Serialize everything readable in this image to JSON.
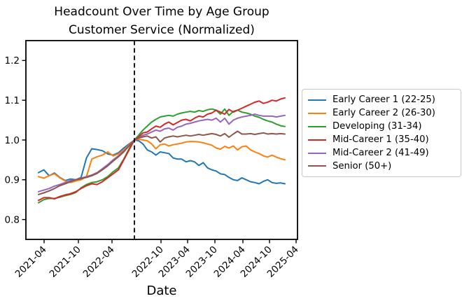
{
  "title": {
    "line1": "Headcount Over Time by Age Group",
    "line2": "Customer Service (Normalized)"
  },
  "chart_data": {
    "type": "line",
    "title": "Headcount Over Time by Age Group",
    "subtitle": "Customer Service (Normalized)",
    "xlabel": "Date",
    "ylabel": "",
    "grid": false,
    "legend_position": "right",
    "ylim": [
      0.75,
      1.25
    ],
    "y_ticks": [
      0.8,
      0.9,
      1.0,
      1.1,
      1.2
    ],
    "y_tick_labels": [
      "0.8",
      "0.9",
      "1.0",
      "1.1",
      "1.2"
    ],
    "x_tick_labels": [
      "2021-04",
      "2021-10",
      "2022-04",
      "2022-10",
      "2023-04",
      "2023-10",
      "2024-04",
      "2024-10",
      "2025-04"
    ],
    "x": [
      "2021-01",
      "2021-02",
      "2021-03",
      "2021-04",
      "2021-05",
      "2021-06",
      "2021-07",
      "2021-08",
      "2021-09",
      "2021-10",
      "2021-11",
      "2021-12",
      "2022-01",
      "2022-02",
      "2022-03",
      "2022-04",
      "2022-05",
      "2022-06",
      "2022-07",
      "2022-08",
      "2022-09",
      "2022-10",
      "2022-11",
      "2022-12",
      "2023-01",
      "2023-02",
      "2023-03",
      "2023-04",
      "2023-05",
      "2023-06",
      "2023-07",
      "2023-08",
      "2023-09",
      "2023-10",
      "2023-11",
      "2023-12",
      "2024-01",
      "2024-02",
      "2024-03",
      "2024-04",
      "2024-05",
      "2024-06",
      "2024-07",
      "2024-08",
      "2024-09",
      "2024-10",
      "2024-11",
      "2024-12",
      "2025-01",
      "2025-02",
      "2025-03",
      "2025-04",
      "2025-05",
      "2025-06"
    ],
    "cutoff_index": 18,
    "vline": {
      "style": "dashed",
      "color": "#000000",
      "x_estimate": "2022-07",
      "normalized_value_at_line": 1.0
    },
    "series": [
      {
        "name": "Early Career 1 (22-25)",
        "color": "#1f77b4",
        "values": [
          0.918,
          0.925,
          0.91,
          0.917,
          0.906,
          0.898,
          0.902,
          0.9,
          0.906,
          0.955,
          0.978,
          0.976,
          0.973,
          0.965,
          0.962,
          0.968,
          0.98,
          0.99,
          1.0,
          0.998,
          0.99,
          0.975,
          0.97,
          0.962,
          0.97,
          0.968,
          0.966,
          0.955,
          0.952,
          0.952,
          0.945,
          0.948,
          0.945,
          0.936,
          0.943,
          0.93,
          0.925,
          0.922,
          0.915,
          0.913,
          0.906,
          0.9,
          0.898,
          0.905,
          0.9,
          0.895,
          0.893,
          0.89,
          0.896,
          0.9,
          0.893,
          0.891,
          0.892,
          0.89
        ]
      },
      {
        "name": "Early Career 2 (26-30)",
        "color": "#ff7f0e",
        "values": [
          0.908,
          0.904,
          0.91,
          0.915,
          0.905,
          0.897,
          0.893,
          0.897,
          0.9,
          0.908,
          0.952,
          0.958,
          0.962,
          0.97,
          0.96,
          0.965,
          0.975,
          0.988,
          1.0,
          1.002,
          1.0,
          0.998,
          0.99,
          0.978,
          0.988,
          0.99,
          0.985,
          0.988,
          0.99,
          0.992,
          0.995,
          0.996,
          0.996,
          0.995,
          0.993,
          0.99,
          0.987,
          0.98,
          0.977,
          0.984,
          0.98,
          0.985,
          0.975,
          0.983,
          0.985,
          0.975,
          0.97,
          0.966,
          0.96,
          0.957,
          0.962,
          0.957,
          0.953,
          0.95
        ]
      },
      {
        "name": "Developing (31-34)",
        "color": "#2ca02c",
        "values": [
          0.842,
          0.85,
          0.853,
          0.853,
          0.856,
          0.86,
          0.863,
          0.868,
          0.88,
          0.888,
          0.893,
          0.895,
          0.9,
          0.908,
          0.92,
          0.93,
          0.952,
          0.978,
          1.0,
          1.012,
          1.025,
          1.035,
          1.045,
          1.052,
          1.058,
          1.06,
          1.062,
          1.06,
          1.065,
          1.068,
          1.07,
          1.072,
          1.07,
          1.074,
          1.072,
          1.076,
          1.078,
          1.075,
          1.065,
          1.078,
          1.062,
          1.072,
          1.075,
          1.07,
          1.068,
          1.065,
          1.06,
          1.057,
          1.052,
          1.048,
          1.045,
          1.04,
          1.036,
          1.034
        ]
      },
      {
        "name": "Mid-Career 1 (35-40)",
        "color": "#d62728",
        "values": [
          0.848,
          0.855,
          0.855,
          0.852,
          0.858,
          0.862,
          0.865,
          0.87,
          0.878,
          0.885,
          0.89,
          0.888,
          0.895,
          0.905,
          0.915,
          0.925,
          0.95,
          0.975,
          1.0,
          1.008,
          1.018,
          1.02,
          1.028,
          1.035,
          1.032,
          1.04,
          1.045,
          1.038,
          1.044,
          1.05,
          1.052,
          1.048,
          1.055,
          1.06,
          1.058,
          1.065,
          1.068,
          1.075,
          1.07,
          1.065,
          1.077,
          1.07,
          1.075,
          1.08,
          1.085,
          1.09,
          1.095,
          1.098,
          1.092,
          1.095,
          1.1,
          1.098,
          1.103,
          1.106
        ]
      },
      {
        "name": "Mid-Career 2 (41-49)",
        "color": "#9467bd",
        "values": [
          0.87,
          0.874,
          0.878,
          0.884,
          0.888,
          0.893,
          0.898,
          0.9,
          0.904,
          0.908,
          0.912,
          0.918,
          0.928,
          0.938,
          0.95,
          0.96,
          0.972,
          0.986,
          1.0,
          1.005,
          1.012,
          1.015,
          1.02,
          1.025,
          1.022,
          1.028,
          1.03,
          1.025,
          1.032,
          1.035,
          1.04,
          1.042,
          1.045,
          1.048,
          1.05,
          1.052,
          1.05,
          1.055,
          1.045,
          1.055,
          1.04,
          1.05,
          1.055,
          1.058,
          1.06,
          1.062,
          1.065,
          1.062,
          1.06,
          1.06,
          1.06,
          1.058,
          1.06,
          1.062
        ]
      },
      {
        "name": "Senior (50+)",
        "color": "#8c564b",
        "values": [
          0.863,
          0.867,
          0.872,
          0.878,
          0.885,
          0.89,
          0.895,
          0.9,
          0.903,
          0.906,
          0.91,
          0.916,
          0.925,
          0.935,
          0.947,
          0.958,
          0.97,
          0.985,
          1.0,
          1.005,
          1.008,
          1.01,
          1.005,
          1.008,
          0.995,
          1.005,
          1.008,
          1.01,
          1.008,
          1.01,
          1.012,
          1.01,
          1.012,
          1.014,
          1.012,
          1.014,
          1.016,
          1.014,
          1.01,
          1.016,
          1.007,
          1.015,
          1.022,
          1.015,
          1.015,
          1.016,
          1.014,
          1.016,
          1.018,
          1.015,
          1.016,
          1.015,
          1.016,
          1.015
        ]
      }
    ]
  }
}
